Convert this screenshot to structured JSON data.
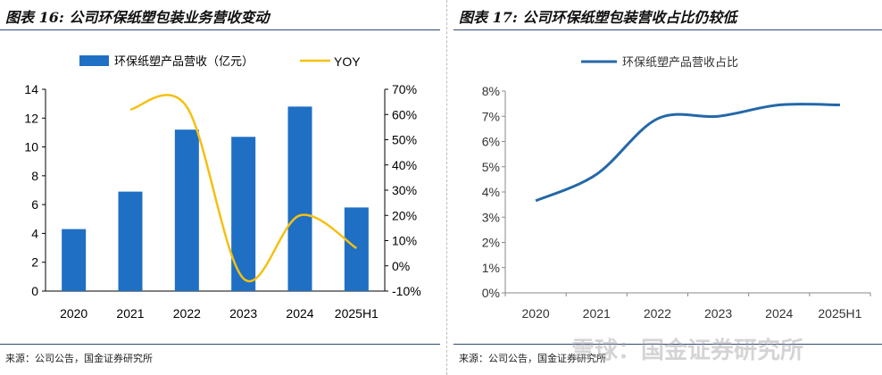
{
  "left": {
    "title": "图表 16: 公司环保纸塑包装业务营收变动",
    "source": "来源：公司公告，国金证券研究所",
    "chart_data": {
      "type": "bar",
      "categories": [
        "2020",
        "2021",
        "2022",
        "2023",
        "2024",
        "2025H1"
      ],
      "series": [
        {
          "name": "环保纸塑产品营收（亿元）",
          "kind": "bar",
          "axis": "left",
          "color": "#1f6fc4",
          "values": [
            4.3,
            6.9,
            11.2,
            10.7,
            12.8,
            5.8
          ]
        },
        {
          "name": "YOY",
          "kind": "line",
          "axis": "right",
          "color": "#f5c012",
          "values": [
            null,
            62,
            63,
            -5,
            20,
            7
          ]
        }
      ],
      "ylim": [
        0,
        14
      ],
      "yticks": [
        "0",
        "2",
        "4",
        "6",
        "8",
        "10",
        "12",
        "14"
      ],
      "y2lim": [
        -10,
        70
      ],
      "y2ticks": [
        "-10%",
        "0%",
        "10%",
        "20%",
        "30%",
        "40%",
        "50%",
        "60%",
        "70%"
      ],
      "legend": "top-center"
    }
  },
  "right": {
    "title": "图表 17: 公司环保纸塑包装营收占比仍较低",
    "source": "来源：公司公告，国金证券研究所",
    "chart_data": {
      "type": "line",
      "categories": [
        "2020",
        "2021",
        "2022",
        "2023",
        "2024",
        "2025H1"
      ],
      "series": [
        {
          "name": "环保纸塑产品营收占比",
          "color": "#2468a8",
          "values": [
            3.65,
            4.7,
            6.9,
            7.0,
            7.45,
            7.45
          ]
        }
      ],
      "ylim": [
        0,
        8
      ],
      "yticks": [
        "0%",
        "1%",
        "2%",
        "3%",
        "4%",
        "5%",
        "6%",
        "7%",
        "8%"
      ],
      "legend": "top-center"
    }
  },
  "watermark": "雪球：国金证券研究所"
}
